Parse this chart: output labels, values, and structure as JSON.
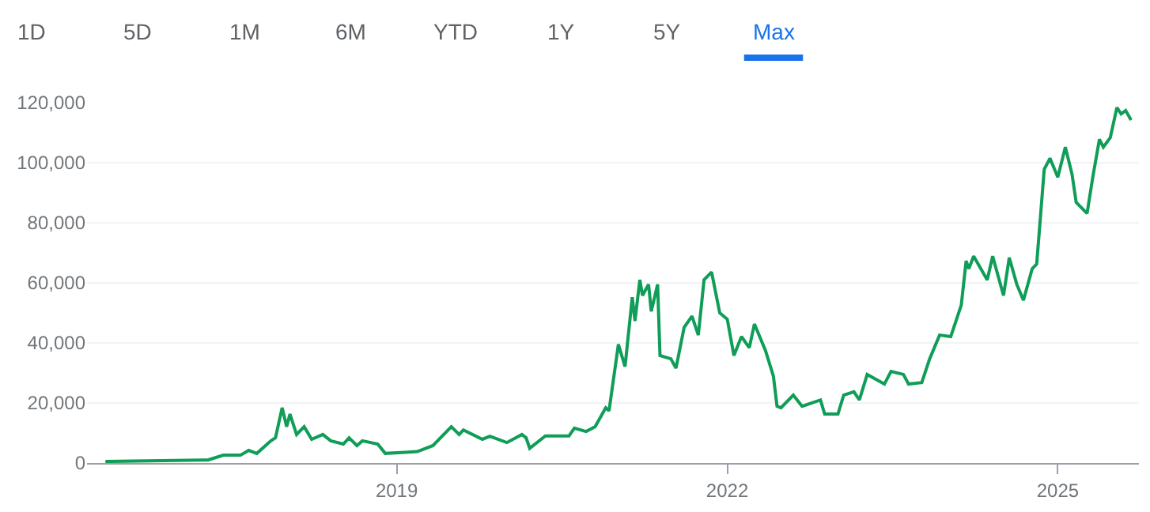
{
  "chart_data": {
    "type": "line",
    "annotations": [
      "1D",
      "5D",
      "1M",
      "6M",
      "YTD",
      "1Y",
      "5Y",
      "Max"
    ],
    "x": [
      "2016-05-10",
      "2017-04-15",
      "2017-06-05",
      "2017-08-01",
      "2017-08-28",
      "2017-09-24",
      "2017-11-10",
      "2017-11-25",
      "2017-12-17",
      "2018-01-01",
      "2018-01-12",
      "2018-02-03",
      "2018-02-28",
      "2018-03-25",
      "2018-05-01",
      "2018-05-27",
      "2018-07-08",
      "2018-07-27",
      "2018-08-22",
      "2018-09-09",
      "2018-10-30",
      "2018-11-24",
      "2019-01-15",
      "2019-03-10",
      "2019-05-01",
      "2019-07-01",
      "2019-07-27",
      "2019-08-10",
      "2019-10-12",
      "2019-11-06",
      "2020-01-01",
      "2020-02-20",
      "2020-03-05",
      "2020-03-17",
      "2020-05-08",
      "2020-07-25",
      "2020-08-12",
      "2020-09-20",
      "2020-10-20",
      "2020-11-24",
      "2020-12-05",
      "2021-01-05",
      "2021-01-27",
      "2021-02-20",
      "2021-03-01",
      "2021-03-17",
      "2021-03-26",
      "2021-04-15",
      "2021-04-24",
      "2021-05-15",
      "2021-05-23",
      "2021-06-28",
      "2021-07-15",
      "2021-08-11",
      "2021-09-06",
      "2021-09-27",
      "2021-10-16",
      "2021-11-10",
      "2021-12-07",
      "2022-01-01",
      "2022-01-23",
      "2022-02-17",
      "2022-03-15",
      "2022-04-01",
      "2022-05-08",
      "2022-06-03",
      "2022-06-15",
      "2022-06-28",
      "2022-08-08",
      "2022-09-06",
      "2022-11-06",
      "2022-11-20",
      "2023-01-03",
      "2023-01-22",
      "2023-02-25",
      "2023-03-15",
      "2023-04-10",
      "2023-06-06",
      "2023-06-28",
      "2023-08-08",
      "2023-08-25",
      "2023-10-08",
      "2023-11-03",
      "2023-12-06",
      "2024-01-12",
      "2024-02-16",
      "2024-03-03",
      "2024-03-12",
      "2024-03-28",
      "2024-05-12",
      "2024-05-30",
      "2024-07-05",
      "2024-07-24",
      "2024-08-18",
      "2024-09-09",
      "2024-10-08",
      "2024-10-23",
      "2024-11-17",
      "2024-12-06",
      "2025-01-01",
      "2025-01-26",
      "2025-02-17",
      "2025-03-03",
      "2025-04-08",
      "2025-04-27",
      "2025-05-19",
      "2025-06-01",
      "2025-06-24",
      "2025-07-16",
      "2025-07-30",
      "2025-08-14",
      "2025-09-01"
    ],
    "series": [
      {
        "color": "#0f9d58",
        "values": [
          500,
          1000,
          2600,
          2600,
          4200,
          3200,
          7400,
          8400,
          18400,
          12100,
          16300,
          9500,
          12100,
          7900,
          9500,
          7400,
          6300,
          8400,
          5800,
          7400,
          6300,
          3200,
          3500,
          3800,
          5800,
          12100,
          9500,
          11000,
          7900,
          8900,
          6800,
          9500,
          8400,
          4900,
          9000,
          9000,
          11600,
          10500,
          12100,
          18400,
          17400,
          39500,
          32100,
          55200,
          47300,
          61000,
          55800,
          59500,
          50500,
          59500,
          35800,
          34700,
          31600,
          45200,
          48900,
          42600,
          61000,
          63600,
          50000,
          47900,
          35800,
          42100,
          38400,
          46300,
          37400,
          28900,
          18900,
          18400,
          22600,
          18900,
          21000,
          16300,
          16300,
          22600,
          23700,
          21000,
          29500,
          26300,
          30500,
          29500,
          26300,
          26800,
          34700,
          42600,
          42100,
          52600,
          67300,
          64700,
          68900,
          61000,
          68900,
          55800,
          68400,
          59500,
          54200,
          64700,
          66300,
          97800,
          101500,
          95200,
          105200,
          96300,
          86800,
          83100,
          95200,
          107800,
          105200,
          108400,
          118400,
          116300,
          117400,
          114200
        ]
      }
    ],
    "xlim": [
      "2016-03-10",
      "2025-09-27"
    ],
    "xticks": [
      {
        "value": "2019-01-01",
        "label": "2019"
      },
      {
        "value": "2022-01-01",
        "label": "2022"
      },
      {
        "value": "2025-01-01",
        "label": "2025"
      }
    ],
    "ylim": [
      0,
      120000
    ],
    "yticks": [
      0,
      {
        "value": 20000,
        "label": "20,000"
      },
      {
        "value": 40000,
        "label": "40,000"
      },
      {
        "value": 60000,
        "label": "60,000"
      },
      {
        "value": 80000,
        "label": "80,000"
      },
      {
        "value": 100000,
        "label": "100,000"
      },
      {
        "value": 120000,
        "label": "120,000"
      }
    ],
    "grid": "y",
    "marker": "none",
    "line_style": "solid"
  }
}
